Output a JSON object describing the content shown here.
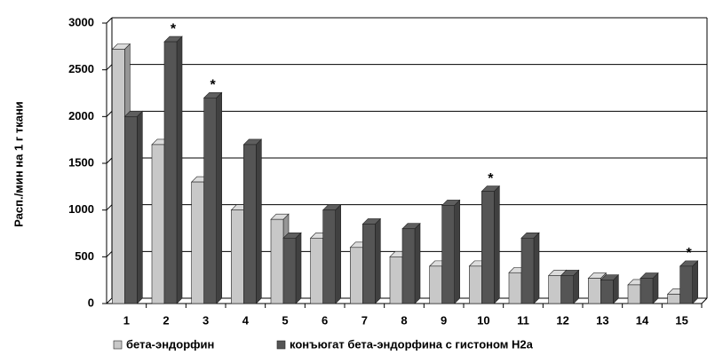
{
  "chart_data": {
    "type": "bar",
    "y_label": "Расп./мин на 1 г ткани",
    "categories": [
      "1",
      "2",
      "3",
      "4",
      "5",
      "6",
      "7",
      "8",
      "9",
      "10",
      "11",
      "12",
      "13",
      "14",
      "15"
    ],
    "series": [
      {
        "name": "бета-эндорфин",
        "color": "#c8c8c8",
        "values": [
          2720,
          1700,
          1300,
          1000,
          900,
          700,
          600,
          500,
          400,
          400,
          330,
          300,
          270,
          200,
          100
        ]
      },
      {
        "name": "конъюгат бета-эндорфина с гистоном Н2а",
        "color": "#555555",
        "values": [
          2000,
          2800,
          2200,
          1700,
          700,
          1000,
          850,
          800,
          1050,
          1200,
          700,
          300,
          250,
          270,
          400
        ]
      }
    ],
    "annotations": [
      {
        "category": "2",
        "text": "*"
      },
      {
        "category": "3",
        "text": "*"
      },
      {
        "category": "10",
        "text": "*"
      },
      {
        "category": "15",
        "text": "*"
      }
    ],
    "ylim": [
      0,
      3000
    ],
    "yticks": [
      0,
      500,
      1000,
      1500,
      2000,
      2500,
      3000
    ],
    "grid": true
  }
}
